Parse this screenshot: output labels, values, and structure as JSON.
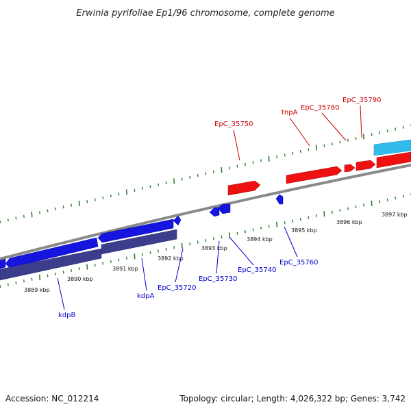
{
  "title": "Erwinia pyrifoliae Ep1/96 chromosome, complete genome",
  "footer": {
    "accession": "Accession: NC_012214",
    "summary": "Topology: circular; Length: 4,026,322 bp; Genes: 3,742"
  },
  "colors": {
    "forward_label": "#cc0000",
    "reverse_label": "#0000cc",
    "forward_cds": "#ee1111",
    "reverse_cds": "#1515dd",
    "forward_gene": "#33bbee",
    "reverse_gene": "#3c3d8c",
    "backbone": "#8a8a8a",
    "tick": "#2e7d2e"
  },
  "ticks": [
    "3889 kbp",
    "3890 kbp",
    "3891 kbp",
    "3892 kbp",
    "3893 kbp",
    "3894 kbp",
    "3895 kbp",
    "3896 kbp",
    "3897 kbp"
  ],
  "forward_labels": [
    {
      "id": "EpC_35750",
      "text": "EpC_35750"
    },
    {
      "id": "tnpA",
      "text": "tnpA"
    },
    {
      "id": "EpC_35780",
      "text": "EpC_35780"
    },
    {
      "id": "EpC_35790",
      "text": "EpC_35790"
    }
  ],
  "reverse_labels": [
    {
      "id": "kdpB",
      "text": "kdpB"
    },
    {
      "id": "kdpA",
      "text": "kdpA"
    },
    {
      "id": "EpC_35720",
      "text": "EpC_35720"
    },
    {
      "id": "EpC_35730",
      "text": "EpC_35730"
    },
    {
      "id": "EpC_35740",
      "text": "EpC_35740"
    },
    {
      "id": "EpC_35760",
      "text": "EpC_35760"
    }
  ]
}
